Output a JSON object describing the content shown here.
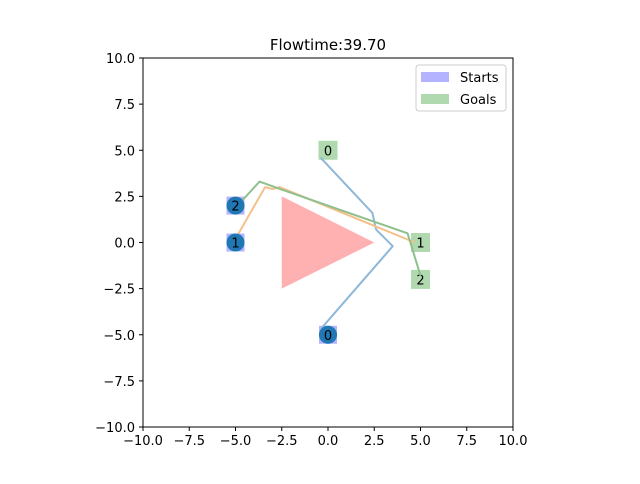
{
  "chart_data": {
    "type": "scatter",
    "title": "Flowtime:39.70",
    "xlabel": "",
    "ylabel": "",
    "xlim": [
      -10,
      10
    ],
    "ylim": [
      -10,
      10
    ],
    "xticks": [
      -10,
      -7.5,
      -5,
      -2.5,
      0,
      2.5,
      5,
      7.5,
      10
    ],
    "yticks": [
      -10,
      -7.5,
      -5,
      -2.5,
      0,
      2.5,
      5,
      7.5,
      10
    ],
    "xtick_labels": [
      "−10.0",
      "−7.5",
      "−5.0",
      "−2.5",
      "0.0",
      "2.5",
      "5.0",
      "7.5",
      "10.0"
    ],
    "ytick_labels": [
      "−10.0",
      "−7.5",
      "−5.0",
      "−2.5",
      "0.0",
      "2.5",
      "5.0",
      "7.5",
      "10.0"
    ],
    "grid": false,
    "legend": {
      "placement": "top-right",
      "entries": [
        {
          "label": "Starts",
          "color": "#b3b3ff"
        },
        {
          "label": "Goals",
          "color": "#b0d9b0"
        }
      ]
    },
    "obstacle": {
      "color": "#ffb0b0",
      "vertices": [
        [
          -2.5,
          2.5
        ],
        [
          2.5,
          0.0
        ],
        [
          -2.5,
          -2.5
        ]
      ]
    },
    "starts": [
      {
        "label": "0",
        "x": 0.0,
        "y": -5.0
      },
      {
        "label": "1",
        "x": -5.0,
        "y": 0.0
      },
      {
        "label": "2",
        "x": -5.0,
        "y": 2.0
      }
    ],
    "goals": [
      {
        "label": "0",
        "x": 0.0,
        "y": 5.0
      },
      {
        "label": "1",
        "x": 5.0,
        "y": 0.0
      },
      {
        "label": "2",
        "x": 5.0,
        "y": -2.0
      }
    ],
    "agents": [
      {
        "label": "0",
        "x": 0.0,
        "y": -5.0
      },
      {
        "label": "1",
        "x": -5.0,
        "y": 0.0
      },
      {
        "label": "2",
        "x": -5.0,
        "y": 2.0
      }
    ],
    "start_color": "#b3b3ff",
    "goal_color": "#b0d9b0",
    "agent_color": "#1f77b4",
    "paths": [
      {
        "agent": "0",
        "color": "#8fb8d8",
        "points": [
          [
            -0.4,
            -4.7
          ],
          [
            3.5,
            -0.2
          ],
          [
            2.6,
            0.7
          ],
          [
            2.4,
            1.6
          ],
          [
            -0.4,
            4.6
          ]
        ]
      },
      {
        "agent": "1",
        "color": "#f5c08a",
        "points": [
          [
            -5.0,
            0.2
          ],
          [
            -3.4,
            3.0
          ],
          [
            -3.0,
            2.9
          ],
          [
            -2.6,
            3.0
          ],
          [
            4.7,
            0.0
          ]
        ]
      },
      {
        "agent": "2",
        "color": "#8dc08d",
        "points": [
          [
            -4.8,
            2.1
          ],
          [
            -3.7,
            3.3
          ],
          [
            -2.6,
            2.9
          ],
          [
            4.3,
            0.5
          ],
          [
            5.0,
            -1.8
          ]
        ]
      }
    ]
  }
}
